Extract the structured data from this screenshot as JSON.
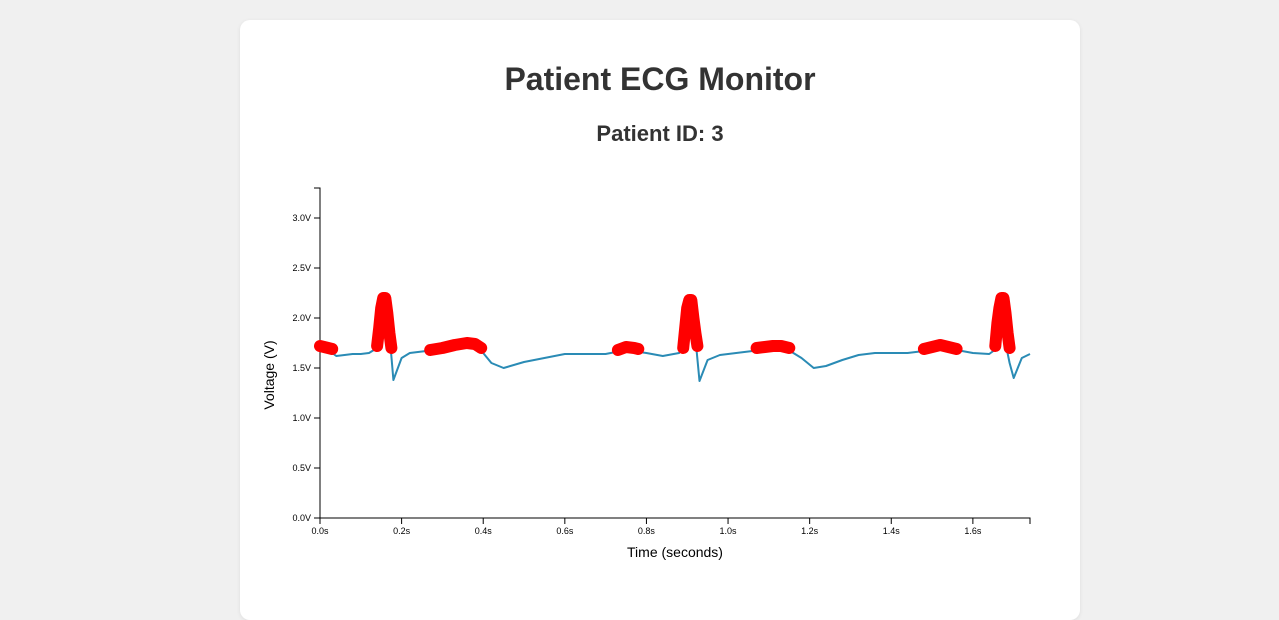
{
  "page": {
    "title": "Patient ECG Monitor",
    "patient_label": "Patient ID: 3"
  },
  "colors": {
    "background": "#f0f0f0",
    "card": "#ffffff",
    "line": "#2a8bb5",
    "highlight": "#ff0000",
    "text": "#333333"
  },
  "chart_data": {
    "type": "line",
    "title": "",
    "xlabel": "Time (seconds)",
    "ylabel": "Voltage (V)",
    "xlim": [
      0,
      1.74
    ],
    "ylim": [
      0,
      3.3
    ],
    "x_ticks": [
      0,
      0.2,
      0.4,
      0.6,
      0.8,
      1.0,
      1.2,
      1.4,
      1.6
    ],
    "x_tick_labels": [
      "0.0s",
      "0.2s",
      "0.4s",
      "0.6s",
      "0.8s",
      "1.0s",
      "1.2s",
      "1.4s",
      "1.6s"
    ],
    "y_ticks": [
      0,
      0.5,
      1.0,
      1.5,
      2.0,
      2.5,
      3.0
    ],
    "y_tick_labels": [
      "0.0V",
      "0.5V",
      "1.0V",
      "1.5V",
      "2.0V",
      "2.5V",
      "3.0V"
    ],
    "grid": false,
    "series": [
      {
        "x": [
          0.0,
          0.02,
          0.04,
          0.06,
          0.08,
          0.1,
          0.12,
          0.14,
          0.15,
          0.16,
          0.17,
          0.18,
          0.2,
          0.22,
          0.26,
          0.3,
          0.34,
          0.37,
          0.4,
          0.42,
          0.45,
          0.5,
          0.55,
          0.6,
          0.65,
          0.7,
          0.75,
          0.8,
          0.84,
          0.88,
          0.9,
          0.91,
          0.92,
          0.93,
          0.95,
          0.98,
          1.02,
          1.06,
          1.1,
          1.14,
          1.18,
          1.21,
          1.24,
          1.28,
          1.32,
          1.36,
          1.4,
          1.44,
          1.48,
          1.52,
          1.56,
          1.6,
          1.64,
          1.66,
          1.67,
          1.68,
          1.69,
          1.7,
          1.72,
          1.74
        ],
        "y": [
          1.7,
          1.68,
          1.62,
          1.63,
          1.64,
          1.64,
          1.65,
          1.7,
          1.95,
          2.2,
          1.85,
          1.38,
          1.6,
          1.65,
          1.67,
          1.69,
          1.74,
          1.72,
          1.65,
          1.55,
          1.5,
          1.56,
          1.6,
          1.64,
          1.64,
          1.64,
          1.68,
          1.65,
          1.62,
          1.65,
          1.8,
          2.18,
          1.8,
          1.37,
          1.58,
          1.63,
          1.65,
          1.67,
          1.69,
          1.7,
          1.6,
          1.5,
          1.52,
          1.58,
          1.63,
          1.65,
          1.65,
          1.65,
          1.67,
          1.72,
          1.68,
          1.65,
          1.64,
          1.7,
          2.2,
          1.75,
          1.55,
          1.4,
          1.6,
          1.64
        ]
      }
    ],
    "highlights": [
      {
        "x": [
          0.0,
          0.01,
          0.02,
          0.03
        ],
        "y": [
          1.72,
          1.71,
          1.7,
          1.69
        ]
      },
      {
        "x": [
          0.14,
          0.145,
          0.15,
          0.155,
          0.16,
          0.165,
          0.17,
          0.175
        ],
        "y": [
          1.72,
          1.9,
          2.1,
          2.2,
          2.2,
          2.05,
          1.85,
          1.7
        ]
      },
      {
        "x": [
          0.27,
          0.3,
          0.33,
          0.36,
          0.38,
          0.395
        ],
        "y": [
          1.68,
          1.7,
          1.73,
          1.75,
          1.74,
          1.7
        ]
      },
      {
        "x": [
          0.73,
          0.75,
          0.77,
          0.78
        ],
        "y": [
          1.68,
          1.71,
          1.7,
          1.69
        ]
      },
      {
        "x": [
          0.89,
          0.895,
          0.9,
          0.905,
          0.91,
          0.915,
          0.92,
          0.925
        ],
        "y": [
          1.7,
          1.9,
          2.1,
          2.18,
          2.18,
          2.0,
          1.85,
          1.72
        ]
      },
      {
        "x": [
          1.07,
          1.09,
          1.11,
          1.13,
          1.15
        ],
        "y": [
          1.7,
          1.71,
          1.72,
          1.72,
          1.7
        ]
      },
      {
        "x": [
          1.48,
          1.5,
          1.52,
          1.54,
          1.56
        ],
        "y": [
          1.69,
          1.71,
          1.73,
          1.71,
          1.69
        ]
      },
      {
        "x": [
          1.655,
          1.66,
          1.665,
          1.67,
          1.675,
          1.68,
          1.685,
          1.69
        ],
        "y": [
          1.72,
          1.95,
          2.1,
          2.2,
          2.2,
          2.05,
          1.85,
          1.7
        ]
      }
    ]
  }
}
